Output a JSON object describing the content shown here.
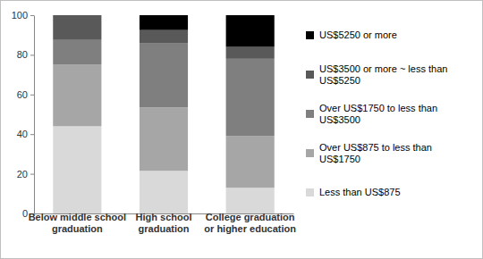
{
  "chart_data": {
    "type": "bar",
    "stacked": true,
    "legend": "right",
    "categories": [
      "Below middle school graduation",
      "High school graduation",
      "College graduation or higher education"
    ],
    "series": [
      {
        "name": "Less than US$875",
        "color": "#d9d9d9",
        "values": [
          44,
          21.5,
          13
        ]
      },
      {
        "name": "Over US$875 to less than US$1750",
        "color": "#a6a6a6",
        "values": [
          31,
          32,
          26
        ]
      },
      {
        "name": "Over US$1750 to less than US$3500",
        "color": "#7f7f7f",
        "values": [
          12.5,
          32.5,
          39
        ]
      },
      {
        "name": "US$3500 or more ~ less than US$5250",
        "color": "#595959",
        "values": [
          12.5,
          6.5,
          6
        ]
      },
      {
        "name": "US$5250 or more",
        "color": "#000000",
        "values": [
          0,
          7.5,
          16
        ]
      }
    ],
    "ylim": [
      0,
      100
    ],
    "yticks": [
      0,
      20,
      40,
      60,
      80,
      100
    ]
  }
}
